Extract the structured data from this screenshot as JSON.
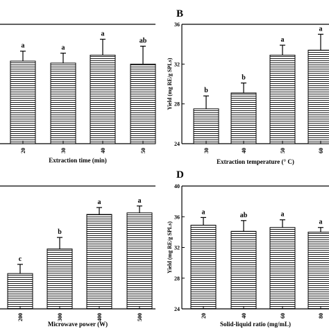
{
  "chart_data": [
    {
      "id": "A",
      "panel_label": "",
      "type": "bar",
      "xlabel": "Extraction time (min)",
      "ylabel": "",
      "ylim": [
        24,
        36
      ],
      "categories": [
        "20",
        "30",
        "40",
        "50"
      ],
      "values": [
        32.3,
        32.1,
        32.9,
        32.0
      ],
      "errors": [
        1.0,
        1.0,
        1.6,
        1.8
      ],
      "letters": [
        "a",
        "a",
        "a",
        "ab"
      ],
      "bar_pattern": "horizontal-lines"
    },
    {
      "id": "B",
      "panel_label": "B",
      "type": "bar",
      "xlabel": "Extraction temperature (° C)",
      "ylabel": "Yield (mg RE/g SPLs)",
      "ylim": [
        24,
        36
      ],
      "yticks": [
        "24",
        "28",
        "32",
        "36"
      ],
      "categories": [
        "30",
        "40",
        "50",
        "60"
      ],
      "values": [
        27.5,
        29.1,
        32.9,
        33.4
      ],
      "errors": [
        1.3,
        1.0,
        1.0,
        1.6
      ],
      "letters": [
        "b",
        "b",
        "a",
        "a"
      ],
      "bar_pattern": "horizontal-lines"
    },
    {
      "id": "C",
      "panel_label": "",
      "type": "bar",
      "xlabel": "Microwave power (W)",
      "ylabel": "",
      "ylim": [
        24,
        40
      ],
      "categories": [
        "200",
        "300",
        "400",
        "500"
      ],
      "values": [
        28.6,
        31.8,
        36.3,
        36.5
      ],
      "errors": [
        1.2,
        1.5,
        0.9,
        0.9
      ],
      "letters": [
        "c",
        "b",
        "a",
        "a"
      ],
      "bar_pattern": "horizontal-lines"
    },
    {
      "id": "D",
      "panel_label": "D",
      "type": "bar",
      "xlabel": "Solid-liquid ratio (mg/mL)",
      "ylabel": "Yield (mg RE/g SPLs)",
      "ylim": [
        24,
        40
      ],
      "yticks": [
        "24",
        "28",
        "32",
        "36",
        "40"
      ],
      "categories": [
        "20",
        "40",
        "60",
        "80"
      ],
      "values": [
        34.9,
        34.1,
        34.6,
        34.0
      ],
      "errors": [
        1.0,
        1.4,
        1.0,
        0.6
      ],
      "letters": [
        "a",
        "ab",
        "a",
        "a"
      ],
      "bar_pattern": "horizontal-lines"
    }
  ]
}
